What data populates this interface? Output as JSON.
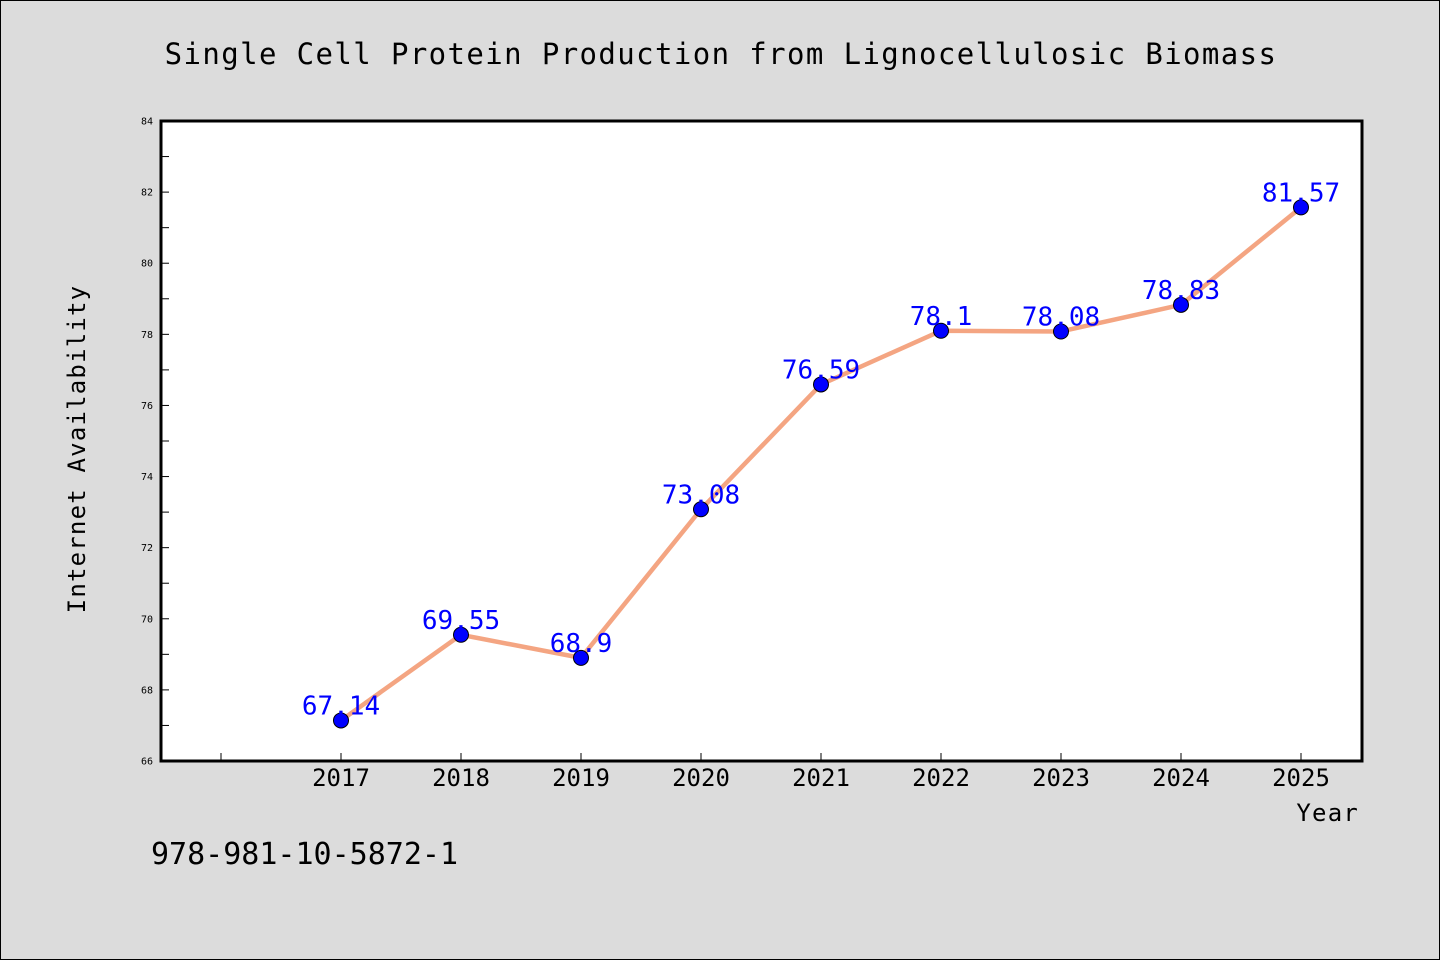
{
  "chart_data": {
    "type": "line",
    "title": "Single Cell Protein Production from Lignocellulosic Biomass",
    "xlabel": "Year",
    "ylabel": "Internet Availability",
    "x": [
      "2017",
      "2018",
      "2019",
      "2020",
      "2021",
      "2022",
      "2023",
      "2024",
      "2025"
    ],
    "series": [
      {
        "values": [
          67.14,
          69.55,
          68.9,
          73.08,
          76.59,
          78.1,
          78.08,
          78.83,
          81.57
        ],
        "labels": [
          "67.14",
          "69.55",
          "68.9",
          "73.08",
          "76.59",
          "78.1",
          "78.08",
          "78.83",
          "81.57"
        ],
        "line_color": "#f4a582",
        "marker_color": "#0000ff"
      }
    ],
    "ylim": [
      66,
      84
    ],
    "yticks": [
      "66",
      "68",
      "70",
      "72",
      "74",
      "76",
      "78",
      "80",
      "82",
      "84"
    ],
    "grid": false,
    "legend": "none",
    "footnote": "978-981-10-5872-1",
    "colors": {
      "background": "#dcdcdc",
      "plot_background": "#ffffff",
      "label_color": "#0000ff"
    }
  }
}
